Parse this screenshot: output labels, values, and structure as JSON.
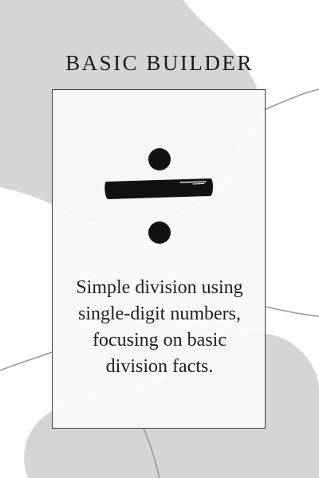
{
  "header": {
    "title": "BASIC BUILDER"
  },
  "card": {
    "symbol_icon": "division-sign-icon",
    "description_lines": [
      "Simple division using",
      "single-digit numbers,",
      "focusing on basic",
      "division facts."
    ]
  },
  "colors": {
    "background": "#ffffff",
    "blob": "#d5d5d5",
    "card": "#faf9f7",
    "ink": "#111111",
    "line": "#9a9a9a"
  }
}
